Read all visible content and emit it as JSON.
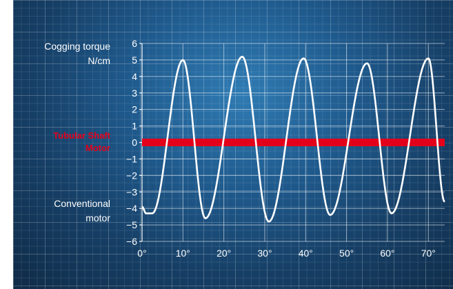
{
  "chart_data": {
    "type": "line",
    "ylabel_line1": "Cogging torque",
    "ylabel_line2": "N/cm",
    "xlim": [
      0,
      74
    ],
    "ylim": [
      -6,
      6
    ],
    "y_ticks": [
      6,
      5,
      4,
      3,
      2,
      1,
      0,
      -1,
      -2,
      -3,
      -4,
      -5,
      -6
    ],
    "y_tick_labels": [
      "6",
      "5",
      "4",
      "3",
      "2",
      "1",
      "0",
      "−1",
      "−2",
      "−3",
      "−4",
      "−5",
      "−6"
    ],
    "x_ticks": [
      0,
      10,
      20,
      30,
      40,
      50,
      60,
      70
    ],
    "x_tick_labels": [
      "0°",
      "10°",
      "20°",
      "30°",
      "40°",
      "50°",
      "60°",
      "70°"
    ],
    "grid": true,
    "series": [
      {
        "name": "Tubular Shaft Motor",
        "label_line1": "Tubular Shaft",
        "label_line2": "Motor",
        "color": "#e3001b",
        "x": [
          0,
          74
        ],
        "y": [
          0,
          0
        ]
      },
      {
        "name": "Conventional motor",
        "label_line1": "Conventional",
        "label_line2": "motor",
        "color": "#ffffff",
        "x": [
          0,
          1,
          2.5,
          10,
          15.5,
          24.5,
          31,
          39.5,
          46,
          55,
          61,
          70,
          74
        ],
        "y": [
          -3.9,
          -4.3,
          -4.3,
          5.0,
          -4.6,
          5.2,
          -4.8,
          5.1,
          -4.4,
          4.8,
          -4.3,
          5.1,
          -3.6
        ]
      }
    ]
  }
}
